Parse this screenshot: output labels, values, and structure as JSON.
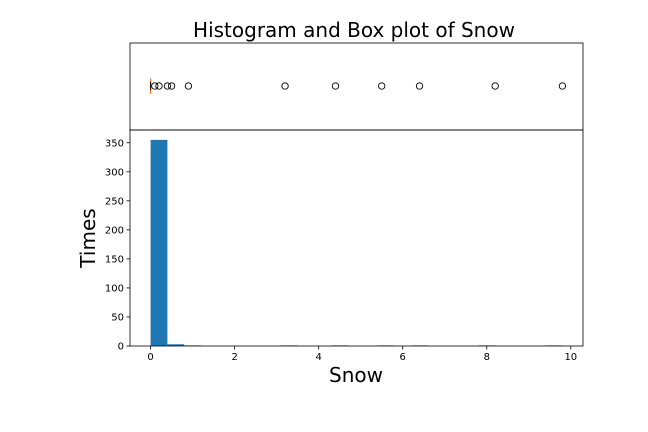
{
  "chart_data": {
    "title": "Histogram and Box plot of Snow",
    "boxplot": {
      "type": "boxplot",
      "orientation": "horizontal",
      "median": 0,
      "q1": 0,
      "q3": 0,
      "whisker_low": 0,
      "whisker_high": 0,
      "median_color": "#ff7f0e",
      "outliers": [
        0.1,
        0.2,
        0.4,
        0.5,
        0.9,
        3.2,
        4.4,
        5.5,
        6.4,
        8.2,
        9.8
      ]
    },
    "histogram": {
      "type": "bar",
      "bar_color": "#1f77b4",
      "xlabel": "Snow",
      "ylabel": "Times",
      "xlim": [
        -0.49,
        10.29
      ],
      "ylim": [
        0,
        372
      ],
      "x_ticks": [
        0,
        2,
        4,
        6,
        8,
        10
      ],
      "y_ticks": [
        0,
        50,
        100,
        150,
        200,
        250,
        300,
        350
      ],
      "bins": [
        {
          "x0": 0.0,
          "x1": 0.4,
          "count": 355
        },
        {
          "x0": 0.4,
          "x1": 0.8,
          "count": 3
        },
        {
          "x0": 0.8,
          "x1": 1.2,
          "count": 1
        },
        {
          "x0": 3.1,
          "x1": 3.5,
          "count": 1
        },
        {
          "x0": 4.3,
          "x1": 4.7,
          "count": 1
        },
        {
          "x0": 5.4,
          "x1": 5.8,
          "count": 1
        },
        {
          "x0": 6.2,
          "x1": 6.6,
          "count": 1
        },
        {
          "x0": 7.8,
          "x1": 8.2,
          "count": 1
        },
        {
          "x0": 9.4,
          "x1": 9.8,
          "count": 1
        }
      ]
    }
  }
}
